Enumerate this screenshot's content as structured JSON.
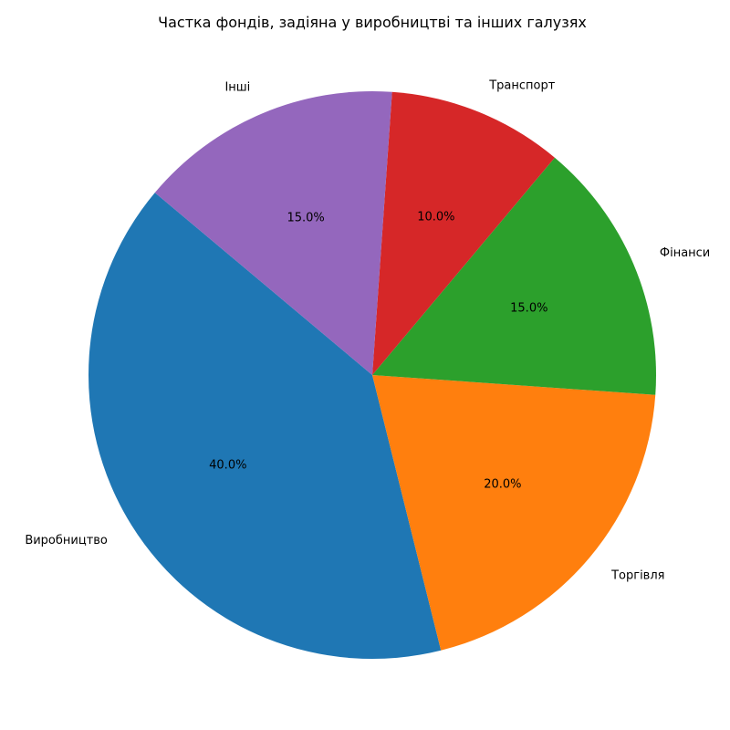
{
  "chart_data": {
    "type": "pie",
    "title": "Частка фондів, задіяна у виробництві та інших галузях",
    "categories": [
      "Виробництво",
      "Торгівля",
      "Фінанси",
      "Транспорт",
      "Інші"
    ],
    "values": [
      40.0,
      20.0,
      15.0,
      10.0,
      15.0
    ],
    "percent_labels": [
      "40.0%",
      "20.0%",
      "15.0%",
      "10.0%",
      "15.0%"
    ],
    "colors": [
      "#1f77b4",
      "#ff7f0e",
      "#2ca02c",
      "#d62728",
      "#9467bd"
    ],
    "start_angle_deg": 140,
    "direction": "counterclockwise",
    "legend": "none"
  }
}
